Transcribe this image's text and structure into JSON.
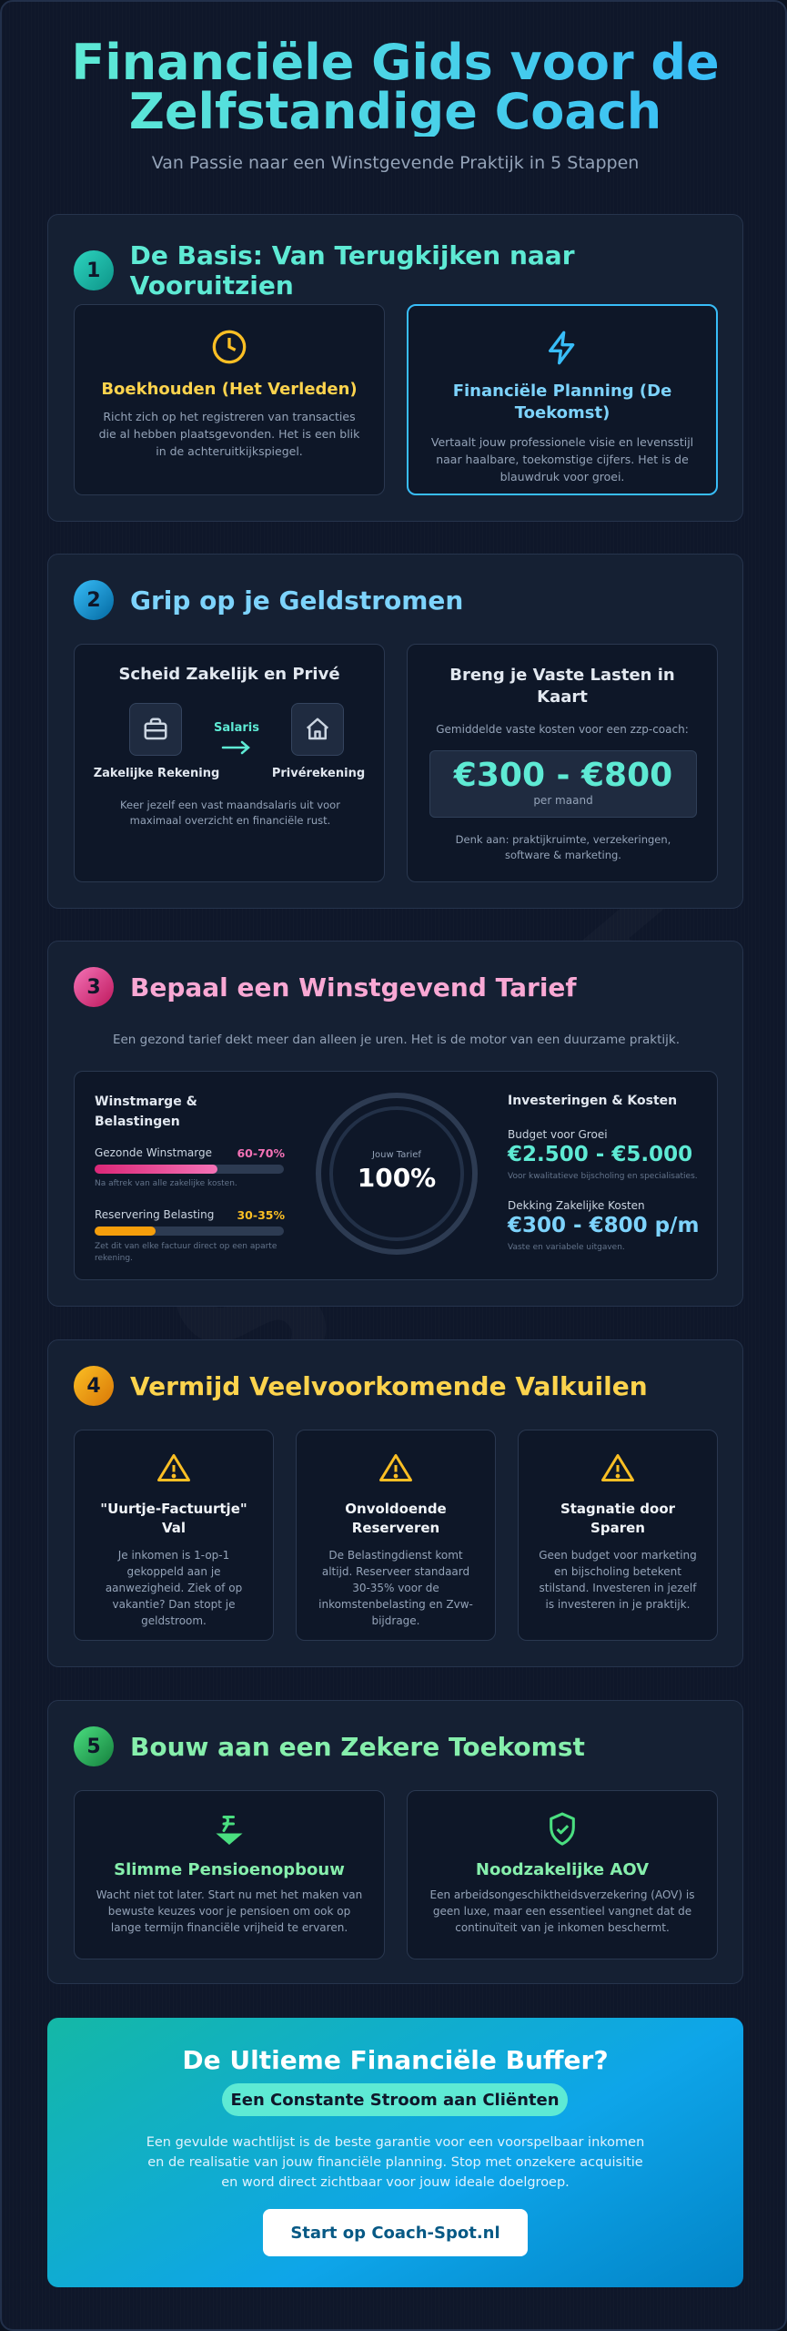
{
  "hero": {
    "title": "Financiële Gids voor de Zelfstandige Coach",
    "subtitle": "Van Passie naar een Winstgevende Praktijk in 5 Stappen"
  },
  "watermark": "SPOT",
  "colors": {
    "teal": "#5eead4",
    "sky": "#7dd3fc",
    "pink": "#f9a8d4",
    "yellow": "#fcd34d",
    "green": "#86efac",
    "card_bg": "#0e1728",
    "section_bg": "#152033"
  },
  "sections": [
    {
      "number": "1",
      "title": "De Basis: Van Terugkijken naar Vooruitzien",
      "cards": [
        {
          "icon": "clock-icon",
          "title": "Boekhouden (Het Verleden)",
          "text": "Richt zich op het registreren van transacties die al hebben plaatsgevonden. Het is een blik in de achteruitkijkspiegel."
        },
        {
          "icon": "lightning-icon",
          "title": "Financiële Planning (De Toekomst)",
          "text": "Vertaalt jouw professionele visie en levensstijl naar haalbare, toekomstige cijfers. Het is de blauwdruk voor groei."
        }
      ]
    },
    {
      "number": "2",
      "title": "Grip op je Geldstromen",
      "separate": {
        "title": "Scheid Zakelijk en Privé",
        "left_icon": "briefcase-icon",
        "left_label": "Zakelijke Rekening",
        "arrow_label": "Salaris",
        "right_icon": "home-icon",
        "right_label": "Privérekening",
        "text": "Keer jezelf een vast maandsalaris uit voor maximaal overzicht en financiële rust."
      },
      "fixed": {
        "title": "Breng je Vaste Lasten in Kaart",
        "intro": "Gemiddelde vaste kosten voor een zzp-coach:",
        "amount": "€300 - €800",
        "period": "per maand",
        "note": "Denk aan: praktijkruimte, verzekeringen, software & marketing."
      }
    },
    {
      "number": "3",
      "title": "Bepaal een Winstgevend Tarief",
      "intro": "Een gezond tarief dekt meer dan alleen je uren. Het is de motor van een duurzame praktijk.",
      "left_title": "Winstmarge & Belastingen",
      "margin_label": "Gezonde Winstmarge",
      "margin_value": "60-70%",
      "margin_fill": 0.65,
      "margin_note": "Na aftrek van alle zakelijke kosten.",
      "reserve_label": "Reservering Belasting",
      "reserve_value": "30-35%",
      "reserve_fill": 0.32,
      "reserve_note": "Zet dit van elke factuur direct op een aparte rekening.",
      "gauge_label": "Jouw Tarief",
      "gauge_value": "100%",
      "right_title": "Investeringen & Kosten",
      "growth_label": "Budget voor Groei",
      "growth_value": "€2.500 - €5.000",
      "growth_note": "Voor kwalitatieve bijscholing en specialisaties.",
      "cover_label": "Dekking Zakelijke Kosten",
      "cover_value": "€300 - €800 p/m",
      "cover_note": "Vaste en variabele uitgaven."
    },
    {
      "number": "4",
      "title": "Vermijd Veelvoorkomende Valkuilen",
      "cards": [
        {
          "icon": "warning-icon",
          "title": "\"Uurtje-Factuurtje\" Val",
          "text": "Je inkomen is 1-op-1 gekoppeld aan je aanwezigheid. Ziek of op vakantie? Dan stopt je geldstroom."
        },
        {
          "icon": "warning-icon",
          "title": "Onvoldoende Reserveren",
          "text": "De Belastingdienst komt altijd. Reserveer standaard 30-35% voor de inkomstenbelasting en Zvw-bijdrage."
        },
        {
          "icon": "warning-icon",
          "title": "Stagnatie door Sparen",
          "text": "Geen budget voor marketing en bijscholing betekent stilstand. Investeren in jezelf is investeren in je praktijk."
        }
      ]
    },
    {
      "number": "5",
      "title": "Bouw aan een Zekere Toekomst",
      "cards": [
        {
          "icon": "pension-coin-icon",
          "title": "Slimme Pensioenopbouw",
          "text": "Wacht niet tot later. Start nu met het maken van bewuste keuzes voor je pensioen om ook op lange termijn financiële vrijheid te ervaren."
        },
        {
          "icon": "shield-check-icon",
          "title": "Noodzakelijke AOV",
          "text": "Een arbeidsongeschiktheidsverzekering (AOV) is geen luxe, maar een essentieel vangnet dat de continuïteit van je inkomen beschermt."
        }
      ]
    }
  ],
  "cta": {
    "title": "De Ultieme Financiële Buffer?",
    "pill": "Een Constante Stroom aan Cliënten",
    "text": "Een gevulde wachtlijst is de beste garantie voor een voorspelbaar inkomen en de realisatie van jouw financiële planning. Stop met onzekere acquisitie en word direct zichtbaar voor jouw ideale doelgroep.",
    "button": "Start op Coach-Spot.nl"
  }
}
